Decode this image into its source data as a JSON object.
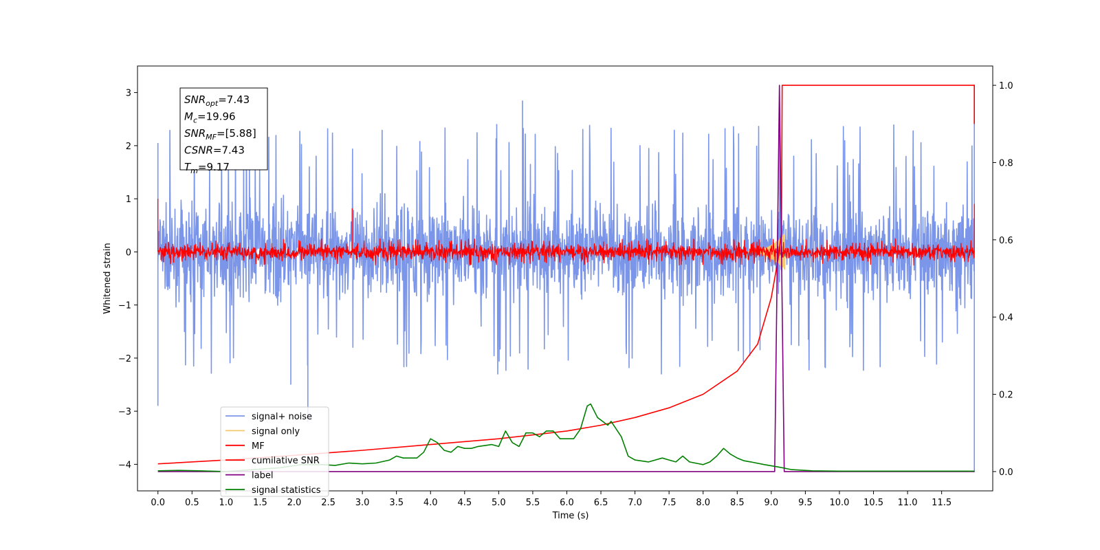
{
  "chart_data": {
    "type": "line",
    "xlabel": "Time (s)",
    "ylabel": "Whitened strain",
    "xlim": [
      -0.3,
      12.25
    ],
    "ylim": [
      -4.5,
      3.5
    ],
    "y2lim": [
      -0.05,
      1.05
    ],
    "x_ticks": [
      "0.0",
      "0.5",
      "1.0",
      "1.5",
      "2.0",
      "2.5",
      "3.0",
      "3.5",
      "4.0",
      "4.5",
      "5.0",
      "5.5",
      "6.0",
      "6.5",
      "7.0",
      "7.5",
      "8.0",
      "8.5",
      "9.0",
      "9.5",
      "10.0",
      "10.5",
      "11.0",
      "11.5"
    ],
    "y_ticks": [
      "3",
      "2",
      "1",
      "0",
      "−1",
      "−2",
      "−3",
      "−4"
    ],
    "y2_ticks": [
      "1.0",
      "0.8",
      "0.6",
      "0.4",
      "0.2",
      "0.0"
    ],
    "grid": false,
    "legend_position": "lower-left",
    "annotation": {
      "lines": [
        {
          "base": "SNR",
          "sub": "opt",
          "value": "=7.43"
        },
        {
          "base": "M",
          "sub": "c",
          "value": "=19.96"
        },
        {
          "base": "SNR",
          "sub": "MF",
          "value": "=[5.88]"
        },
        {
          "base": "CSNR",
          "sub": "",
          "value": "=7.43"
        },
        {
          "base": "T",
          "sub": "m",
          "value": "=9.17"
        }
      ]
    },
    "series": [
      {
        "name": "signal+ noise",
        "color": "#7b95e8",
        "axis": "left",
        "kind": "noise",
        "x_range": [
          0,
          11.98
        ],
        "spread": [
          -2.3,
          2.4
        ],
        "core": [
          -1.2,
          1.2
        ],
        "spikes": [
          [
            0.0,
            -2.9
          ],
          [
            0.0,
            2.05
          ],
          [
            2.2,
            -3.2
          ],
          [
            1.95,
            -2.5
          ],
          [
            5.35,
            2.85
          ],
          [
            11.98,
            3.15
          ],
          [
            11.98,
            -4.15
          ]
        ]
      },
      {
        "name": "signal only",
        "color": "#f5c86e",
        "axis": "left",
        "kind": "chirp",
        "x_range": [
          8.6,
          9.2
        ]
      },
      {
        "name": "MF",
        "color": "#ff0000",
        "axis": "left",
        "kind": "noise",
        "x_range": [
          0,
          11.98
        ],
        "spread": [
          -0.25,
          0.25
        ],
        "core": [
          -0.2,
          0.2
        ],
        "spikes": [
          [
            0.0,
            1.0
          ],
          [
            2.85,
            0.82
          ],
          [
            11.98,
            0.9
          ],
          [
            0.0,
            0.45
          ]
        ]
      },
      {
        "name": "cumilative SNR",
        "color": "#ff0000",
        "axis": "right",
        "points": [
          [
            0,
            0.02
          ],
          [
            1,
            0.03
          ],
          [
            2,
            0.042
          ],
          [
            3,
            0.055
          ],
          [
            4,
            0.07
          ],
          [
            5,
            0.085
          ],
          [
            6,
            0.105
          ],
          [
            6.5,
            0.12
          ],
          [
            7,
            0.14
          ],
          [
            7.5,
            0.165
          ],
          [
            8,
            0.2
          ],
          [
            8.5,
            0.26
          ],
          [
            8.8,
            0.33
          ],
          [
            9.0,
            0.45
          ],
          [
            9.1,
            0.55
          ],
          [
            9.15,
            0.62
          ],
          [
            9.16,
            1.0
          ],
          [
            11.98,
            1.0
          ],
          [
            11.98,
            0.9
          ]
        ]
      },
      {
        "name": "label",
        "color": "#800080",
        "axis": "right",
        "points": [
          [
            0,
            0.0
          ],
          [
            9.05,
            0.0
          ],
          [
            9.12,
            1.0
          ],
          [
            9.19,
            0.0
          ],
          [
            11.98,
            0.0
          ]
        ]
      },
      {
        "name": "signal statistics",
        "color": "#008000",
        "axis": "right",
        "points": [
          [
            0,
            0.002
          ],
          [
            0.3,
            0.003
          ],
          [
            0.6,
            0.002
          ],
          [
            1.0,
            0.0
          ],
          [
            1.4,
            0.005
          ],
          [
            1.8,
            0.01
          ],
          [
            2.1,
            0.018
          ],
          [
            2.4,
            0.018
          ],
          [
            2.6,
            0.016
          ],
          [
            2.8,
            0.022
          ],
          [
            3.0,
            0.02
          ],
          [
            3.2,
            0.022
          ],
          [
            3.4,
            0.03
          ],
          [
            3.5,
            0.04
          ],
          [
            3.6,
            0.035
          ],
          [
            3.8,
            0.035
          ],
          [
            3.9,
            0.05
          ],
          [
            4.0,
            0.085
          ],
          [
            4.1,
            0.075
          ],
          [
            4.2,
            0.055
          ],
          [
            4.3,
            0.05
          ],
          [
            4.4,
            0.065
          ],
          [
            4.5,
            0.06
          ],
          [
            4.6,
            0.06
          ],
          [
            4.7,
            0.065
          ],
          [
            4.9,
            0.07
          ],
          [
            5.0,
            0.065
          ],
          [
            5.1,
            0.105
          ],
          [
            5.2,
            0.075
          ],
          [
            5.3,
            0.065
          ],
          [
            5.4,
            0.1
          ],
          [
            5.5,
            0.1
          ],
          [
            5.6,
            0.09
          ],
          [
            5.7,
            0.105
          ],
          [
            5.8,
            0.105
          ],
          [
            5.9,
            0.085
          ],
          [
            6.0,
            0.085
          ],
          [
            6.1,
            0.085
          ],
          [
            6.2,
            0.11
          ],
          [
            6.3,
            0.17
          ],
          [
            6.35,
            0.175
          ],
          [
            6.45,
            0.14
          ],
          [
            6.6,
            0.12
          ],
          [
            6.65,
            0.13
          ],
          [
            6.8,
            0.09
          ],
          [
            6.9,
            0.04
          ],
          [
            7.0,
            0.03
          ],
          [
            7.2,
            0.025
          ],
          [
            7.4,
            0.035
          ],
          [
            7.5,
            0.03
          ],
          [
            7.6,
            0.025
          ],
          [
            7.7,
            0.04
          ],
          [
            7.8,
            0.025
          ],
          [
            8.0,
            0.018
          ],
          [
            8.1,
            0.025
          ],
          [
            8.2,
            0.04
          ],
          [
            8.3,
            0.06
          ],
          [
            8.4,
            0.045
          ],
          [
            8.5,
            0.035
          ],
          [
            8.6,
            0.028
          ],
          [
            8.7,
            0.025
          ],
          [
            8.9,
            0.018
          ],
          [
            9.1,
            0.012
          ],
          [
            9.3,
            0.005
          ],
          [
            9.6,
            0.002
          ],
          [
            10.0,
            0.001
          ],
          [
            11.0,
            0.001
          ],
          [
            11.98,
            0.001
          ]
        ]
      }
    ]
  }
}
